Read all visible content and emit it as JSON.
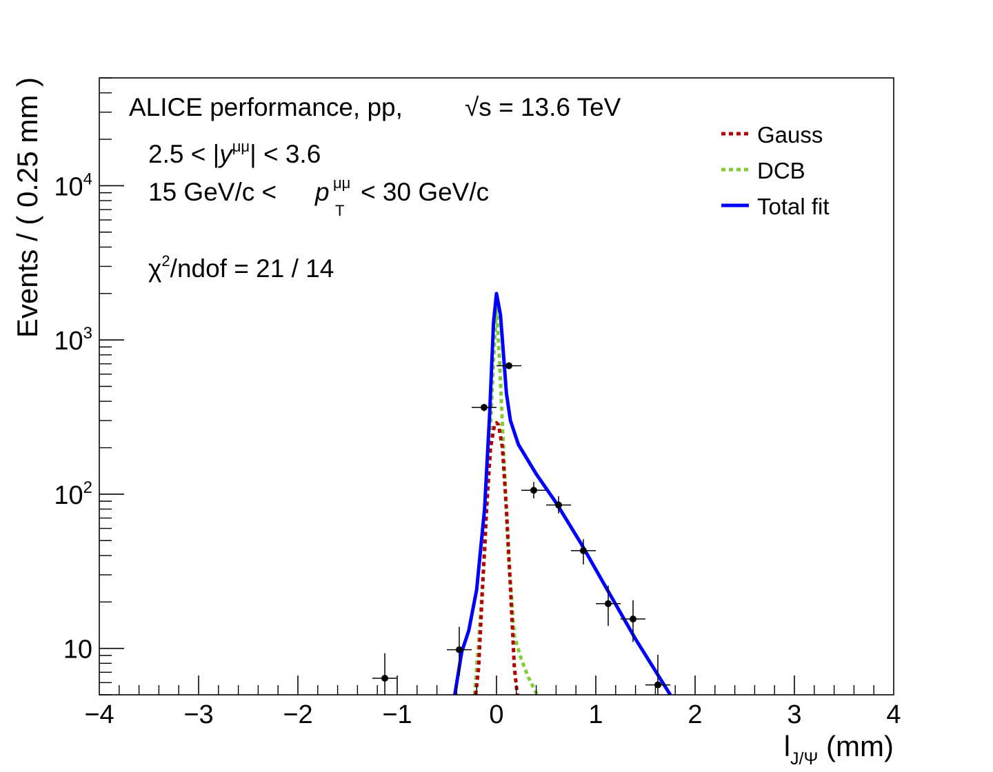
{
  "chart_data": {
    "type": "scatter",
    "xlabel": {
      "main": "l",
      "sub": "J/Ψ",
      "unit": "(mm)"
    },
    "ylabel": "Events / ( 0.25 mm )",
    "xlim": [
      -4,
      4
    ],
    "ylim": [
      5,
      50000
    ],
    "yscale": "log",
    "grid": false,
    "x_ticks": [
      "−4",
      "−3",
      "−2",
      "−1",
      "0",
      "1",
      "2",
      "3",
      "4"
    ],
    "y_ticks": [
      {
        "value": 10,
        "base": "10",
        "exp": ""
      },
      {
        "value": 100,
        "base": "10",
        "exp": "2"
      },
      {
        "value": 1000,
        "base": "10",
        "exp": "3"
      },
      {
        "value": 10000,
        "base": "10",
        "exp": "4"
      }
    ],
    "annotations": {
      "header_main": "ALICE performance, pp,",
      "header_energy": "√s = 13.6 TeV",
      "rapidity": {
        "pre": "2.5 < |",
        "var": "y",
        "sup": "μμ",
        "post": "| < 3.6"
      },
      "pt": {
        "pre": "15 GeV/c <",
        "var": "p",
        "sup": "μμ",
        "sub": "T",
        "post": "< 30 GeV/c"
      },
      "chi2": {
        "sym": "χ",
        "sup": "2",
        "post": "/ndof = 21 / 14"
      }
    },
    "legend": {
      "position": "top-right",
      "entries": [
        {
          "label": "Gauss",
          "color": "#b30000",
          "style": "dotted"
        },
        {
          "label": "DCB",
          "color": "#7fcc33",
          "style": "dotted"
        },
        {
          "label": "Total fit",
          "color": "#0000ff",
          "style": "solid"
        }
      ]
    },
    "data_points": [
      {
        "x": -1.125,
        "y": 6.4,
        "ylo": 4.3,
        "yhi": 9.3
      },
      {
        "x": -0.375,
        "y": 9.8,
        "ylo": 6.6,
        "yhi": 13.8
      },
      {
        "x": -0.125,
        "y": 365,
        "ylo": 345,
        "yhi": 385
      },
      {
        "x": 0.125,
        "y": 680,
        "ylo": 655,
        "yhi": 705
      },
      {
        "x": 0.375,
        "y": 106,
        "ylo": 94,
        "yhi": 120
      },
      {
        "x": 0.625,
        "y": 85,
        "ylo": 75,
        "yhi": 97
      },
      {
        "x": 0.875,
        "y": 43,
        "ylo": 35,
        "yhi": 51
      },
      {
        "x": 1.125,
        "y": 19.5,
        "ylo": 14,
        "yhi": 25.5
      },
      {
        "x": 1.375,
        "y": 15.5,
        "ylo": 11,
        "yhi": 20.5
      },
      {
        "x": 1.625,
        "y": 5.8,
        "ylo": 3.5,
        "yhi": 9.1
      }
    ],
    "x_error": 0.125,
    "series": [
      {
        "name": "Gauss",
        "color": "#b30000",
        "points": [
          [
            -0.21,
            5
          ],
          [
            -0.18,
            7.5
          ],
          [
            -0.14,
            25
          ],
          [
            -0.1,
            80
          ],
          [
            -0.06,
            200
          ],
          [
            -0.02,
            282
          ],
          [
            0,
            290
          ],
          [
            0.02,
            282
          ],
          [
            0.06,
            200
          ],
          [
            0.1,
            80
          ],
          [
            0.14,
            25
          ],
          [
            0.18,
            7.5
          ],
          [
            0.21,
            5
          ]
        ]
      },
      {
        "name": "DCB",
        "color": "#7fcc33",
        "points": [
          [
            -0.22,
            5
          ],
          [
            -0.18,
            11
          ],
          [
            -0.12,
            40
          ],
          [
            -0.07,
            200
          ],
          [
            -0.03,
            750
          ],
          [
            0,
            1600
          ],
          [
            0.03,
            750
          ],
          [
            0.07,
            200
          ],
          [
            0.12,
            40
          ],
          [
            0.18,
            12
          ],
          [
            0.25,
            8.5
          ],
          [
            0.32,
            6.5
          ],
          [
            0.41,
            5
          ]
        ]
      },
      {
        "name": "Total fit",
        "color": "#0000ff",
        "points": [
          [
            -0.42,
            5
          ],
          [
            -0.35,
            9.5
          ],
          [
            -0.28,
            13
          ],
          [
            -0.2,
            24
          ],
          [
            -0.12,
            80
          ],
          [
            -0.07,
            320
          ],
          [
            -0.03,
            1300
          ],
          [
            0,
            2000
          ],
          [
            0.04,
            1450
          ],
          [
            0.1,
            450
          ],
          [
            0.14,
            300
          ],
          [
            0.22,
            210
          ],
          [
            0.4,
            135
          ],
          [
            0.6,
            88
          ],
          [
            0.85,
            48
          ],
          [
            1.1,
            25
          ],
          [
            1.4,
            11.5
          ],
          [
            1.75,
            5
          ]
        ]
      }
    ]
  }
}
